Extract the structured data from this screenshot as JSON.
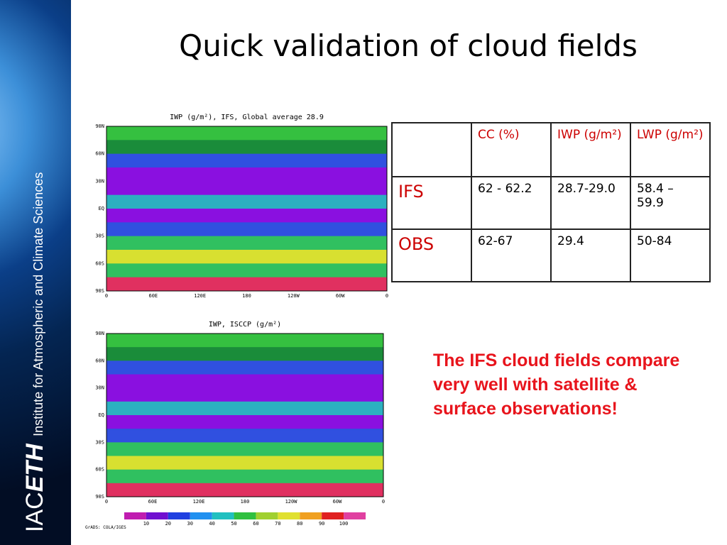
{
  "title": "Quick validation of cloud fields",
  "sidebar": {
    "logo_prefix": "IAC",
    "logo_suffix": "ETH",
    "institute": "Institute for Atmospheric and Climate Sciences"
  },
  "maps": [
    {
      "title": "IWP (g/m²), IFS, Global average 28.9"
    },
    {
      "title": "IWP, ISCCP (g/m²)"
    }
  ],
  "lat_labels": [
    "90N",
    "60N",
    "30N",
    "EQ",
    "30S",
    "60S",
    "90S"
  ],
  "lon_labels": [
    "0",
    "60E",
    "120E",
    "180",
    "120W",
    "60W",
    "0"
  ],
  "colorbar_labels": [
    "10",
    "20",
    "30",
    "40",
    "50",
    "60",
    "70",
    "80",
    "90",
    "100"
  ],
  "credit": "GrADS: COLA/IGES",
  "table": {
    "columns": [
      "CC (%)",
      "IWP (g/m²)",
      "LWP (g/m²)"
    ],
    "rows": [
      [
        "IFS",
        "62 - 62.2",
        "28.7-29.0",
        "58.4 – 59.9"
      ],
      [
        "OBS",
        "62-67",
        "29.4",
        "50-84"
      ]
    ]
  },
  "note": "The IFS cloud fields compare very well with satellite & surface observations!"
}
